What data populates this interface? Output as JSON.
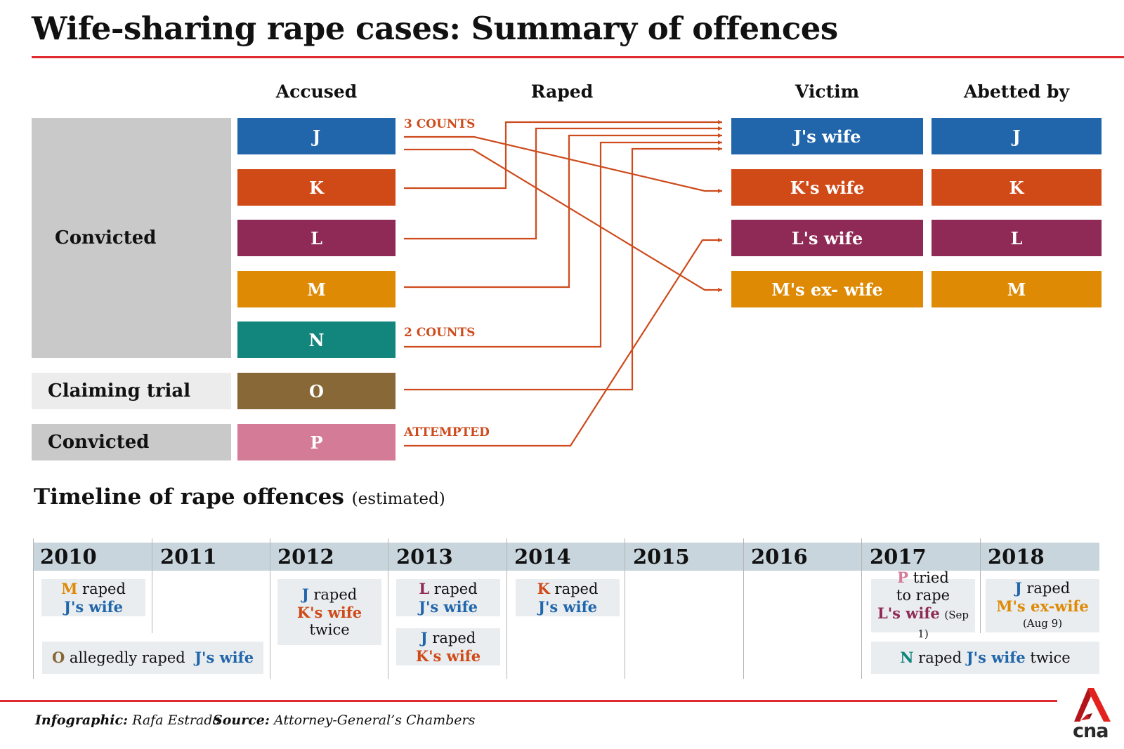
{
  "title": "Wife-sharing rape cases: Summary of offences",
  "colors": {
    "J": "#2166aa",
    "K": "#d04a18",
    "L": "#8e2a55",
    "M": "#de8a05",
    "N": "#12857c",
    "O": "#876836",
    "P": "#d47b98",
    "arrow": "#cd4b1c",
    "rule": "#e02a2f"
  },
  "headers": {
    "accused": "Accused",
    "raped": "Raped",
    "victim": "Victim",
    "abetted_by": "Abetted by"
  },
  "statuses": [
    {
      "label": "Convicted"
    },
    {
      "label": "Claiming trial"
    },
    {
      "label": "Convicted"
    }
  ],
  "accused": [
    "J",
    "K",
    "L",
    "M",
    "N",
    "O",
    "P"
  ],
  "annotations": {
    "j_counts": "3 COUNTS",
    "n_counts": "2 COUNTS",
    "p_attempted": "ATTEMPTED"
  },
  "victims": [
    "J's wife",
    "K's wife",
    "L's wife",
    "M's ex- wife"
  ],
  "abetted_by": [
    "J",
    "K",
    "L",
    "M"
  ],
  "links": [
    {
      "from": "J",
      "to": "K's wife"
    },
    {
      "from": "J",
      "to": "M's ex- wife"
    },
    {
      "from": "K",
      "to": "J's wife"
    },
    {
      "from": "L",
      "to": "J's wife"
    },
    {
      "from": "M",
      "to": "J's wife"
    },
    {
      "from": "N",
      "to": "J's wife"
    },
    {
      "from": "O",
      "to": "J's wife"
    },
    {
      "from": "P",
      "to": "L's wife"
    }
  ],
  "timeline": {
    "title": "Timeline of rape offences",
    "subtitle": "(estimated)",
    "years": [
      "2010",
      "2011",
      "2012",
      "2013",
      "2014",
      "2015",
      "2016",
      "2017",
      "2018"
    ],
    "events": {
      "e2010": {
        "actor": "M",
        "verb": "raped",
        "victim": "J's wife"
      },
      "e2010o": {
        "actor": "O",
        "verb": "allegedly raped",
        "victim": "J's wife"
      },
      "e2012": {
        "actor": "J",
        "verb": "raped",
        "victim": "K's wife",
        "extra": "twice"
      },
      "e2013a": {
        "actor": "L",
        "verb": "raped",
        "victim": "J's wife"
      },
      "e2013b": {
        "actor": "J",
        "verb": "raped",
        "victim": "K's wife"
      },
      "e2014": {
        "actor": "K",
        "verb": "raped",
        "victim": "J's wife"
      },
      "e2017": {
        "actor": "P",
        "verb": "tried",
        "verb2": "to rape",
        "victim": "L's wife",
        "date": "(Sep 1)"
      },
      "e2018": {
        "actor": "J",
        "verb": "raped",
        "victim": "M's ex-wife",
        "date": "(Aug 9)"
      },
      "e2017n": {
        "actor": "N",
        "verb": "raped",
        "victim": "J's wife",
        "extra": "twice"
      }
    }
  },
  "footer": {
    "infographic_label": "Infographic:",
    "infographic_name": "Rafa Estrada",
    "source_label": "Source:",
    "source_name": "Attorney-General’s Chambers",
    "logo_text": "cna"
  }
}
